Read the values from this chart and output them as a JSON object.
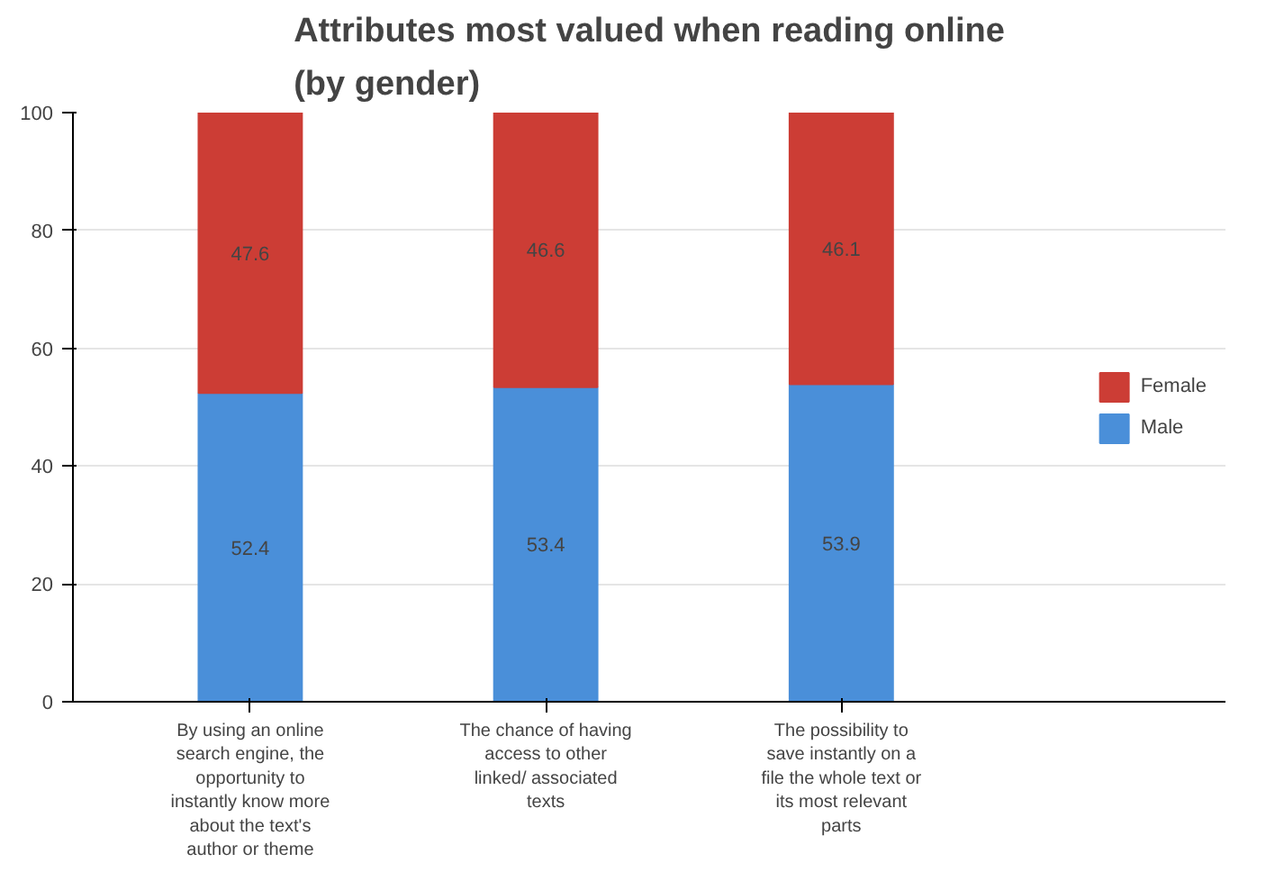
{
  "chart_data": {
    "type": "bar",
    "title": "Attributes most valued when reading online (by gender)",
    "stacked": true,
    "categories": [
      "By using an online search engine, the opportunity to instantly know more about the text's author or theme",
      "The chance of having access to other linked/ associated texts",
      "The possibility to save instantly on a file the whole text or its most relevant parts"
    ],
    "series": [
      {
        "name": "Male",
        "color": "#4a8fd9",
        "values": [
          52.4,
          53.4,
          53.9
        ]
      },
      {
        "name": "Female",
        "color": "#cc3d35",
        "values": [
          47.6,
          46.6,
          46.1
        ]
      }
    ],
    "ylim": [
      0,
      100
    ],
    "yticks": [
      0,
      20,
      40,
      60,
      80,
      100
    ],
    "grid": "y",
    "legend": "right",
    "data_labels": true
  }
}
